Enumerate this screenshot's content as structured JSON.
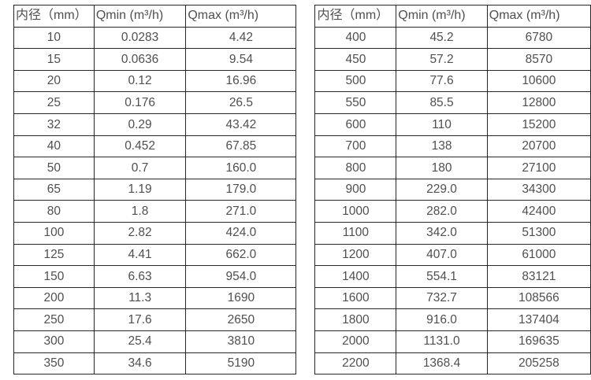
{
  "colors": {
    "background": "#ffffff",
    "border": "#262626",
    "text": "#4f4f4f"
  },
  "tables": [
    {
      "name": "flow-rate-table-left",
      "headers": [
        "内径（mm）",
        "Qmin (m³/h)",
        "Qmax (m³/h)"
      ],
      "rows": [
        [
          "10",
          "0.0283",
          "4.42"
        ],
        [
          "15",
          "0.0636",
          "9.54"
        ],
        [
          "20",
          "0.12",
          "16.96"
        ],
        [
          "25",
          "0.176",
          "26.5"
        ],
        [
          "32",
          "0.29",
          "43.42"
        ],
        [
          "40",
          "0.452",
          "67.85"
        ],
        [
          "50",
          "0.7",
          "160.0"
        ],
        [
          "65",
          "1.19",
          "179.0"
        ],
        [
          "80",
          "1.8",
          "271.0"
        ],
        [
          "100",
          "2.82",
          "424.0"
        ],
        [
          "125",
          "4.41",
          "662.0"
        ],
        [
          "150",
          "6.63",
          "954.0"
        ],
        [
          "200",
          "11.3",
          "1690"
        ],
        [
          "250",
          "17.6",
          "2650"
        ],
        [
          "300",
          "25.4",
          "3810"
        ],
        [
          "350",
          "34.6",
          "5190"
        ]
      ]
    },
    {
      "name": "flow-rate-table-right",
      "headers": [
        "内径（mm）",
        "Qmin (m³/h)",
        "Qmax (m³/h)"
      ],
      "rows": [
        [
          "400",
          "45.2",
          "6780"
        ],
        [
          "450",
          "57.2",
          "8570"
        ],
        [
          "500",
          "77.6",
          "10600"
        ],
        [
          "550",
          "85.5",
          "12800"
        ],
        [
          "600",
          "110",
          "15200"
        ],
        [
          "700",
          "138",
          "20700"
        ],
        [
          "800",
          "180",
          "27100"
        ],
        [
          "900",
          "229.0",
          "34300"
        ],
        [
          "1000",
          "282.0",
          "42400"
        ],
        [
          "1100",
          "342.0",
          "51300"
        ],
        [
          "1200",
          "407.0",
          "61000"
        ],
        [
          "1400",
          "554.1",
          "83121"
        ],
        [
          "1600",
          "732.7",
          "108566"
        ],
        [
          "1800",
          "916.0",
          "137404"
        ],
        [
          "2000",
          "1131.0",
          "169635"
        ],
        [
          "2200",
          "1368.4",
          "205258"
        ]
      ]
    }
  ]
}
